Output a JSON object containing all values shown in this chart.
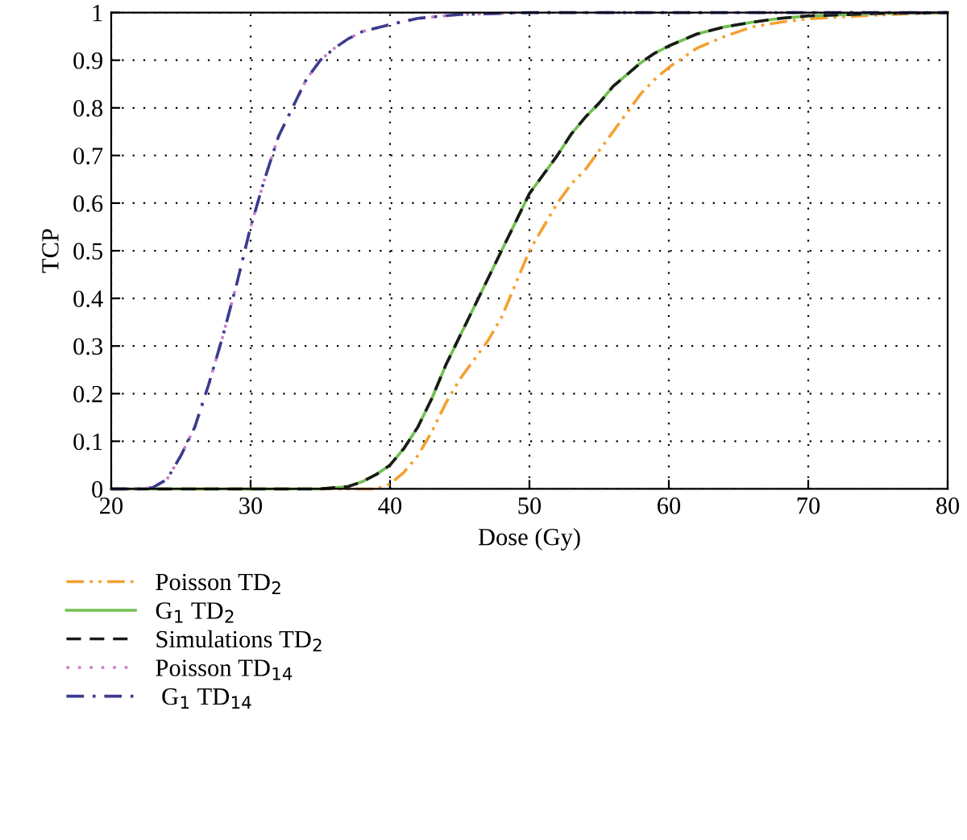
{
  "chart_data": {
    "type": "line",
    "xlabel": "Dose (Gy)",
    "ylabel": "TCP",
    "xlim": [
      20,
      80
    ],
    "xticks": [
      20,
      30,
      40,
      50,
      60,
      70,
      80
    ],
    "ylim": [
      0,
      1
    ],
    "yticks": [
      0,
      0.1,
      0.2,
      0.3,
      0.4,
      0.5,
      0.6,
      0.7,
      0.8,
      0.9,
      1
    ],
    "grid": true,
    "legend": "bottom",
    "marker": "none",
    "series": [
      {
        "name": "Poisson TD$_{2}$",
        "color": "#f5a030",
        "line_style": "dashdotdot",
        "x": [
          20,
          39,
          40,
          41,
          42,
          43,
          44,
          45,
          46,
          47,
          48,
          49,
          50,
          51,
          52,
          53,
          54,
          55,
          56,
          57,
          58,
          59,
          60,
          62,
          64,
          66,
          68,
          70,
          75,
          80
        ],
        "values": [
          0,
          0,
          0.01,
          0.035,
          0.07,
          0.12,
          0.18,
          0.23,
          0.27,
          0.31,
          0.36,
          0.43,
          0.5,
          0.55,
          0.6,
          0.64,
          0.67,
          0.71,
          0.75,
          0.79,
          0.83,
          0.86,
          0.885,
          0.925,
          0.95,
          0.97,
          0.98,
          0.987,
          0.995,
          1
        ]
      },
      {
        "name": "G$_{1}$ TD$_{2}$",
        "color": "#70c050",
        "line_style": "solid",
        "x": [
          20,
          35,
          37,
          38,
          39,
          40,
          41,
          42,
          43,
          44,
          45,
          46,
          47,
          48,
          49,
          50,
          51,
          52,
          53,
          54,
          55,
          56,
          57,
          58,
          59,
          60,
          62,
          64,
          66,
          68,
          70,
          75,
          80
        ],
        "values": [
          0,
          0,
          0.005,
          0.015,
          0.03,
          0.05,
          0.085,
          0.13,
          0.19,
          0.26,
          0.32,
          0.38,
          0.44,
          0.5,
          0.56,
          0.62,
          0.66,
          0.7,
          0.745,
          0.78,
          0.81,
          0.845,
          0.87,
          0.895,
          0.915,
          0.93,
          0.955,
          0.97,
          0.98,
          0.988,
          0.993,
          0.998,
          1
        ]
      },
      {
        "name": "Simulations TD$_{2}$",
        "color": "#1a1a1a",
        "line_style": "dashed",
        "x": [
          20,
          35,
          37,
          38,
          39,
          40,
          41,
          42,
          43,
          44,
          45,
          46,
          47,
          48,
          49,
          50,
          51,
          52,
          53,
          54,
          55,
          56,
          57,
          58,
          59,
          60,
          62,
          64,
          66,
          68,
          70,
          75,
          80
        ],
        "values": [
          0,
          0,
          0.005,
          0.015,
          0.03,
          0.05,
          0.085,
          0.13,
          0.19,
          0.26,
          0.32,
          0.38,
          0.44,
          0.5,
          0.56,
          0.62,
          0.66,
          0.7,
          0.745,
          0.78,
          0.81,
          0.845,
          0.87,
          0.895,
          0.915,
          0.93,
          0.955,
          0.97,
          0.98,
          0.988,
          0.993,
          0.998,
          1
        ]
      },
      {
        "name": "Poisson TD$_{14}$",
        "color": "#c77dc7",
        "line_style": "dotted",
        "x": [
          20,
          22,
          23,
          24,
          25,
          26,
          27,
          28,
          29,
          30,
          31,
          32,
          33,
          34,
          35,
          36,
          37,
          38,
          40,
          42,
          45,
          50,
          80
        ],
        "values": [
          0,
          0,
          0.003,
          0.02,
          0.07,
          0.13,
          0.22,
          0.32,
          0.43,
          0.55,
          0.65,
          0.74,
          0.8,
          0.86,
          0.9,
          0.925,
          0.945,
          0.96,
          0.975,
          0.988,
          0.996,
          1,
          1
        ]
      },
      {
        "name": " G$_{1}$ TD$_{14}$",
        "color": "#3b3b8f",
        "line_style": "dashdot",
        "x": [
          20,
          22,
          23,
          24,
          25,
          26,
          27,
          28,
          29,
          30,
          31,
          32,
          33,
          34,
          35,
          36,
          37,
          38,
          40,
          42,
          45,
          50,
          80
        ],
        "values": [
          0,
          0,
          0.003,
          0.02,
          0.07,
          0.13,
          0.22,
          0.32,
          0.43,
          0.55,
          0.65,
          0.74,
          0.8,
          0.86,
          0.9,
          0.925,
          0.945,
          0.96,
          0.975,
          0.988,
          0.996,
          1,
          1
        ]
      }
    ]
  }
}
